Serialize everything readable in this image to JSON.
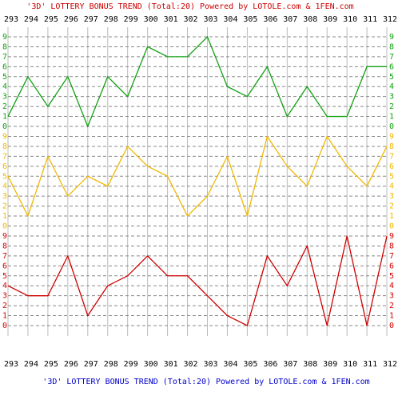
{
  "title": "'3D' LOTTERY BONUS TREND (Total:20)  Powered by LOTOLE.com & 1FEN.com",
  "bottom_title": "'3D' LOTTERY BONUS TREND (Total:20)  Powered by LOTOLE.com & 1FEN.com",
  "categories": [
    "293",
    "294",
    "295",
    "296",
    "297",
    "298",
    "299",
    "300",
    "301",
    "302",
    "303",
    "304",
    "305",
    "306",
    "307",
    "308",
    "309",
    "310",
    "311",
    "312"
  ],
  "chart_data": [
    {
      "type": "line",
      "color": "#10a010",
      "values": [
        1,
        5,
        2,
        5,
        0,
        5,
        3,
        8,
        7,
        7,
        9,
        4,
        3,
        6,
        1,
        4,
        1,
        1,
        6,
        6
      ],
      "ylim": [
        0,
        9
      ],
      "yticks": [
        0,
        1,
        2,
        3,
        4,
        5,
        6,
        7,
        8,
        9
      ],
      "grid": true
    },
    {
      "type": "line",
      "color": "#f0b800",
      "values": [
        5,
        1,
        7,
        3,
        5,
        4,
        8,
        6,
        5,
        1,
        3,
        7,
        1,
        9,
        6,
        4,
        9,
        6,
        4,
        8
      ],
      "ylim": [
        0,
        9
      ],
      "yticks": [
        0,
        1,
        2,
        3,
        4,
        5,
        6,
        7,
        8,
        9
      ],
      "grid": true
    },
    {
      "type": "line",
      "color": "#d00000",
      "values": [
        4,
        3,
        3,
        7,
        1,
        4,
        5,
        7,
        5,
        5,
        3,
        1,
        0,
        7,
        4,
        8,
        0,
        9,
        0,
        9
      ],
      "ylim": [
        0,
        9
      ],
      "yticks": [
        0,
        1,
        2,
        3,
        4,
        5,
        6,
        7,
        8,
        9
      ],
      "grid": true
    }
  ]
}
